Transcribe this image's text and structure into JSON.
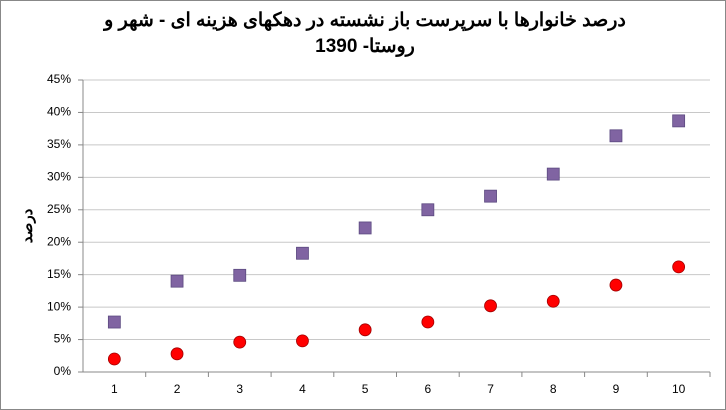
{
  "chart_data": {
    "type": "scatter",
    "title": "درصد خانوارها با سرپرست باز نشسته در دهکهای هزینه ای - شهر و روستا- 1390",
    "y_label": "درصد",
    "categories": [
      "1",
      "2",
      "3",
      "4",
      "5",
      "6",
      "7",
      "8",
      "9",
      "10"
    ],
    "series": [
      {
        "color": "#8064a2",
        "marker": "square",
        "values": [
          7.7,
          14.0,
          14.9,
          18.3,
          22.2,
          25.0,
          27.1,
          30.5,
          36.4,
          38.7
        ]
      },
      {
        "color": "#ff0000",
        "marker": "circle",
        "values": [
          2.0,
          2.8,
          4.6,
          4.8,
          6.5,
          7.7,
          10.2,
          10.9,
          13.4,
          16.2
        ]
      }
    ],
    "ylim": [
      0,
      45
    ],
    "yticks": [
      {
        "value": 0,
        "label": "0%"
      },
      {
        "value": 5,
        "label": "5%"
      },
      {
        "value": 10,
        "label": "10%"
      },
      {
        "value": 15,
        "label": "15%"
      },
      {
        "value": 20,
        "label": "20%"
      },
      {
        "value": 25,
        "label": "25%"
      },
      {
        "value": 30,
        "label": "30%"
      },
      {
        "value": 35,
        "label": "35%"
      },
      {
        "value": 40,
        "label": "40%"
      },
      {
        "value": 45,
        "label": "45%"
      }
    ],
    "grid": true
  }
}
